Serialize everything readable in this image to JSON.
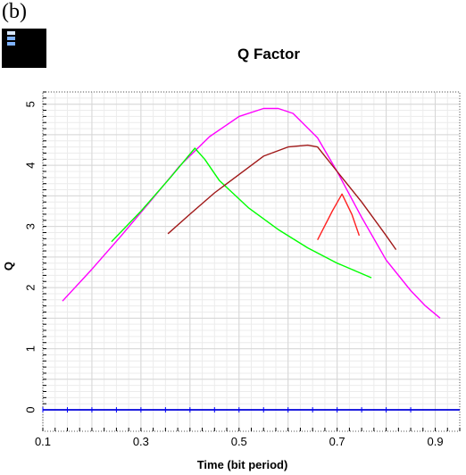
{
  "panel_label": "(b)",
  "chart_data": {
    "type": "line",
    "title": "Q Factor",
    "xlabel": "Time (bit period)",
    "ylabel": "Q",
    "xlim": [
      0.1,
      0.95
    ],
    "ylim": [
      -0.35,
      5.2
    ],
    "x_ticks": [
      0.1,
      0.3,
      0.5,
      0.7,
      0.9
    ],
    "x_tick_labels": [
      "0.1",
      "0.3",
      "0.5",
      "0.7",
      "0.9"
    ],
    "y_ticks": [
      0,
      1,
      2,
      3,
      4,
      5
    ],
    "y_tick_labels": [
      "0",
      "1",
      "2",
      "3",
      "4",
      "5"
    ],
    "grid": true,
    "series": [
      {
        "color": "#ff00ff",
        "x": [
          0.14,
          0.2,
          0.26,
          0.32,
          0.38,
          0.44,
          0.5,
          0.55,
          0.58,
          0.61,
          0.66,
          0.7,
          0.75,
          0.8,
          0.85,
          0.88,
          0.91
        ],
        "y": [
          1.78,
          2.3,
          2.85,
          3.42,
          4.0,
          4.47,
          4.8,
          4.93,
          4.93,
          4.85,
          4.45,
          3.9,
          3.15,
          2.45,
          1.95,
          1.7,
          1.5
        ]
      },
      {
        "color": "#00ff00",
        "x": [
          0.24,
          0.3,
          0.36,
          0.41,
          0.43,
          0.46,
          0.52,
          0.58,
          0.64,
          0.7,
          0.77
        ],
        "y": [
          2.75,
          3.25,
          3.8,
          4.28,
          4.1,
          3.75,
          3.3,
          2.95,
          2.65,
          2.4,
          2.16
        ]
      },
      {
        "color": "#a01818",
        "x": [
          0.355,
          0.4,
          0.45,
          0.5,
          0.55,
          0.6,
          0.64,
          0.66,
          0.7,
          0.75,
          0.8,
          0.82
        ],
        "y": [
          2.88,
          3.2,
          3.55,
          3.85,
          4.15,
          4.3,
          4.33,
          4.3,
          3.9,
          3.4,
          2.85,
          2.62
        ]
      },
      {
        "color": "#ff2020",
        "x": [
          0.66,
          0.69,
          0.71,
          0.73,
          0.745
        ],
        "y": [
          2.78,
          3.25,
          3.53,
          3.2,
          2.85
        ]
      },
      {
        "color": "#0000ff",
        "x": [
          0.1,
          0.95
        ],
        "y": [
          0.0,
          0.0
        ]
      }
    ]
  }
}
